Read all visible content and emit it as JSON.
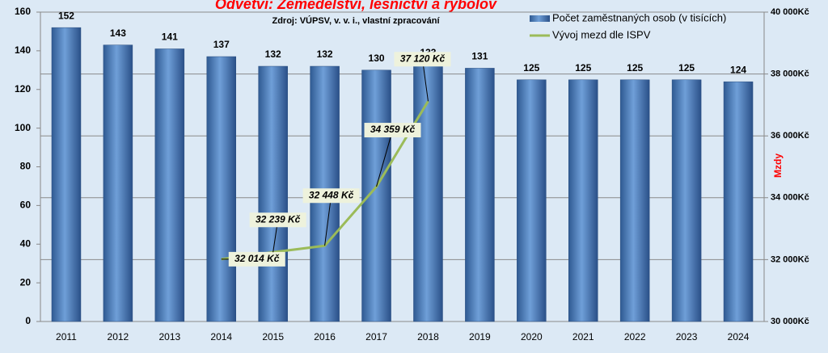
{
  "chart_data": {
    "type": "bar",
    "title": "Odvětví: Zemědělství, lesnictví a rybolov",
    "subtitle": "Zdroj: VÚPSV, v. v. i., vlastní zpracování",
    "y2_label": "Mzdy",
    "categories": [
      "2011",
      "2012",
      "2013",
      "2014",
      "2015",
      "2016",
      "2017",
      "2018",
      "2019",
      "2020",
      "2021",
      "2022",
      "2023",
      "2024"
    ],
    "series": [
      {
        "name": "Počet zaměstnaných osob (v tisících)",
        "type": "bar",
        "color": "#4f81bd",
        "values": [
          152,
          143,
          141,
          137,
          132,
          132,
          130,
          133,
          131,
          125,
          125,
          125,
          125,
          124
        ]
      },
      {
        "name": "Vývoj mezd dle ISPV",
        "type": "line",
        "axis": "y2",
        "color": "#9bbb59",
        "values": [
          null,
          null,
          null,
          32014,
          32239,
          32448,
          34359,
          37120,
          null,
          null,
          null,
          null,
          null,
          null
        ],
        "value_labels": [
          null,
          null,
          null,
          "32 014 Kč",
          "32 239 Kč",
          "32 448 Kč",
          "34 359 Kč",
          "37 120 Kč",
          null,
          null,
          null,
          null,
          null,
          null
        ]
      }
    ],
    "ylim": [
      0,
      160
    ],
    "yticks": [
      0,
      20,
      40,
      60,
      80,
      100,
      120,
      140,
      160
    ],
    "y2lim": [
      30000,
      40000
    ],
    "y2ticks": [
      {
        "value": 30000,
        "label": "30 000Kč"
      },
      {
        "value": 32000,
        "label": "32 000Kč"
      },
      {
        "value": 34000,
        "label": "34 000Kč"
      },
      {
        "value": 36000,
        "label": "36 000Kč"
      },
      {
        "value": 38000,
        "label": "38 000Kč"
      },
      {
        "value": 40000,
        "label": "40 000Kč"
      }
    ],
    "grid": true,
    "legend": "top-right"
  }
}
